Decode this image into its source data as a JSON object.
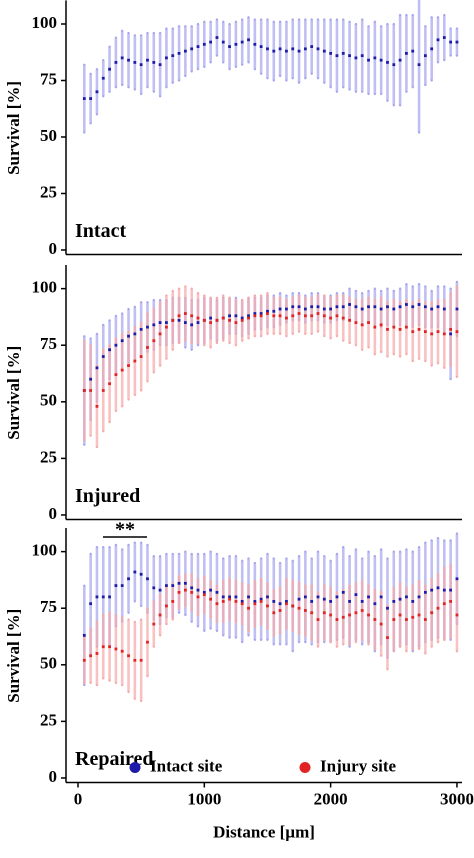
{
  "chart_data": [
    {
      "type": "errorbar",
      "panel_label": "Intact",
      "ylabel": "Survival [%]",
      "xlim": [
        -95,
        3040
      ],
      "ylim": [
        -2,
        110
      ],
      "yticks": [
        0,
        25,
        50,
        75,
        100
      ],
      "x": [
        50,
        100,
        150,
        200,
        250,
        300,
        350,
        400,
        450,
        500,
        550,
        600,
        650,
        700,
        750,
        800,
        850,
        900,
        950,
        1000,
        1050,
        1100,
        1150,
        1200,
        1250,
        1300,
        1350,
        1400,
        1450,
        1500,
        1550,
        1600,
        1650,
        1700,
        1750,
        1800,
        1850,
        1900,
        1950,
        2000,
        2050,
        2100,
        2150,
        2200,
        2250,
        2300,
        2350,
        2400,
        2450,
        2500,
        2550,
        2600,
        2650,
        2700,
        2750,
        2800,
        2850,
        2900,
        2950,
        3000
      ],
      "series": [
        {
          "color": "#1c1ca8",
          "bar_color": "#a4a4ee",
          "values": [
            67,
            67,
            70,
            76,
            80,
            83,
            85,
            84,
            83,
            82,
            84,
            83,
            82,
            85,
            86,
            87,
            88,
            89,
            90,
            91,
            92,
            94,
            92,
            90,
            91,
            92,
            93,
            91,
            90,
            89,
            88,
            89,
            88,
            89,
            88,
            89,
            90,
            89,
            88,
            87,
            86,
            87,
            86,
            85,
            86,
            84,
            85,
            84,
            83,
            82,
            84,
            87,
            88,
            82,
            86,
            89,
            93,
            94,
            92,
            92
          ],
          "errors": [
            15,
            11,
            10,
            8,
            10,
            11,
            12,
            12,
            12,
            13,
            12,
            13,
            14,
            13,
            12,
            12,
            11,
            10,
            10,
            10,
            9,
            8,
            9,
            10,
            10,
            10,
            10,
            11,
            12,
            13,
            13,
            12,
            13,
            13,
            14,
            13,
            12,
            13,
            14,
            15,
            16,
            15,
            15,
            15,
            16,
            15,
            16,
            15,
            17,
            18,
            20,
            17,
            16,
            30,
            13,
            14,
            10,
            10,
            6,
            6
          ]
        }
      ]
    },
    {
      "type": "errorbar",
      "panel_label": "Injured",
      "ylabel": "Survival [%]",
      "xlim": [
        -95,
        3040
      ],
      "ylim": [
        -2,
        110
      ],
      "yticks": [
        0,
        25,
        50,
        75,
        100
      ],
      "x": [
        50,
        100,
        150,
        200,
        250,
        300,
        350,
        400,
        450,
        500,
        550,
        600,
        650,
        700,
        750,
        800,
        850,
        900,
        950,
        1000,
        1050,
        1100,
        1150,
        1200,
        1250,
        1300,
        1350,
        1400,
        1450,
        1500,
        1550,
        1600,
        1650,
        1700,
        1750,
        1800,
        1850,
        1900,
        1950,
        2000,
        2050,
        2100,
        2150,
        2200,
        2250,
        2300,
        2350,
        2400,
        2450,
        2500,
        2550,
        2600,
        2650,
        2700,
        2750,
        2800,
        2850,
        2900,
        2950,
        3000
      ],
      "series": [
        {
          "color": "#1c1ca8",
          "bar_color": "#a4a4ee",
          "values": [
            55,
            60,
            65,
            70,
            73,
            75,
            77,
            79,
            80,
            82,
            83,
            84,
            85,
            85,
            86,
            86,
            85,
            84,
            85,
            86,
            87,
            86,
            87,
            88,
            88,
            87,
            88,
            89,
            89,
            90,
            90,
            91,
            91,
            92,
            92,
            91,
            92,
            92,
            91,
            91,
            92,
            92,
            93,
            92,
            91,
            92,
            92,
            91,
            92,
            91,
            92,
            93,
            92,
            93,
            92,
            91,
            92,
            91,
            80,
            91
          ],
          "errors": [
            24,
            18,
            15,
            14,
            13,
            13,
            12,
            12,
            12,
            12,
            11,
            11,
            10,
            10,
            10,
            10,
            11,
            11,
            10,
            10,
            9,
            9,
            9,
            8,
            8,
            8,
            8,
            7,
            7,
            7,
            7,
            7,
            6,
            6,
            6,
            6,
            6,
            6,
            6,
            6,
            6,
            6,
            7,
            7,
            7,
            7,
            8,
            8,
            8,
            8,
            8,
            9,
            9,
            9,
            9,
            8,
            9,
            10,
            20,
            12
          ]
        },
        {
          "color": "#e02424",
          "bar_color": "#f6a8a8",
          "values": [
            55,
            55,
            48,
            55,
            58,
            62,
            64,
            66,
            68,
            70,
            74,
            77,
            80,
            83,
            86,
            88,
            89,
            88,
            87,
            86,
            85,
            86,
            87,
            86,
            85,
            86,
            87,
            88,
            88,
            89,
            88,
            88,
            87,
            88,
            89,
            88,
            88,
            89,
            88,
            87,
            88,
            87,
            86,
            85,
            84,
            85,
            83,
            84,
            82,
            83,
            82,
            83,
            81,
            82,
            81,
            80,
            81,
            80,
            82,
            81
          ],
          "errors": [
            22,
            20,
            18,
            18,
            17,
            16,
            16,
            15,
            15,
            15,
            15,
            14,
            14,
            14,
            13,
            12,
            12,
            12,
            11,
            11,
            11,
            10,
            10,
            10,
            10,
            9,
            9,
            9,
            9,
            9,
            8,
            8,
            8,
            8,
            8,
            8,
            8,
            8,
            9,
            9,
            9,
            10,
            10,
            10,
            11,
            11,
            12,
            12,
            12,
            12,
            12,
            12,
            13,
            13,
            13,
            14,
            14,
            15,
            16,
            20
          ]
        }
      ]
    },
    {
      "type": "errorbar",
      "panel_label": "Repaired",
      "ylabel": "Survival [%]",
      "xlabel": "Distance [µm]",
      "annotation": "**",
      "legend": "bottom",
      "xlim": [
        -95,
        3040
      ],
      "ylim": [
        -2,
        110
      ],
      "yticks": [
        0,
        25,
        50,
        75,
        100
      ],
      "xticks": [
        0,
        1000,
        2000,
        3000
      ],
      "x": [
        50,
        100,
        150,
        200,
        250,
        300,
        350,
        400,
        450,
        500,
        550,
        600,
        650,
        700,
        750,
        800,
        850,
        900,
        950,
        1000,
        1050,
        1100,
        1150,
        1200,
        1250,
        1300,
        1350,
        1400,
        1450,
        1500,
        1550,
        1600,
        1650,
        1700,
        1750,
        1800,
        1850,
        1900,
        1950,
        2000,
        2050,
        2100,
        2150,
        2200,
        2250,
        2300,
        2350,
        2400,
        2450,
        2500,
        2550,
        2600,
        2650,
        2700,
        2750,
        2800,
        2850,
        2900,
        2950,
        3000
      ],
      "series": [
        {
          "name": "Intact site",
          "color": "#1c1ca8",
          "bar_color": "#a4a4ee",
          "values": [
            63,
            77,
            80,
            80,
            80,
            85,
            85,
            88,
            91,
            90,
            88,
            84,
            83,
            85,
            85,
            86,
            86,
            84,
            83,
            82,
            83,
            82,
            80,
            80,
            80,
            78,
            80,
            78,
            79,
            80,
            78,
            77,
            78,
            76,
            79,
            80,
            78,
            80,
            79,
            78,
            80,
            82,
            78,
            81,
            78,
            80,
            77,
            80,
            75,
            78,
            79,
            80,
            78,
            80,
            82,
            83,
            84,
            83,
            83,
            88
          ],
          "errors": [
            22,
            22,
            22,
            22,
            22,
            18,
            16,
            15,
            13,
            14,
            15,
            14,
            15,
            14,
            14,
            13,
            14,
            15,
            16,
            17,
            17,
            17,
            17,
            18,
            18,
            18,
            17,
            17,
            18,
            19,
            19,
            18,
            19,
            20,
            19,
            20,
            19,
            20,
            19,
            18,
            19,
            20,
            20,
            20,
            19,
            20,
            21,
            21,
            22,
            22,
            21,
            21,
            22,
            22,
            22,
            22,
            22,
            22,
            22,
            20
          ]
        },
        {
          "name": "Injury site",
          "color": "#e02424",
          "bar_color": "#f6a8a8",
          "values": [
            52,
            54,
            55,
            58,
            58,
            57,
            56,
            54,
            52,
            52,
            60,
            68,
            72,
            76,
            78,
            82,
            83,
            82,
            80,
            81,
            79,
            77,
            78,
            79,
            78,
            77,
            75,
            77,
            78,
            76,
            73,
            74,
            77,
            76,
            75,
            74,
            73,
            70,
            73,
            72,
            70,
            71,
            72,
            73,
            74,
            72,
            70,
            68,
            62,
            70,
            72,
            70,
            71,
            72,
            70,
            73,
            75,
            77,
            78,
            72
          ],
          "errors": [
            10,
            12,
            14,
            14,
            15,
            15,
            15,
            16,
            17,
            18,
            15,
            10,
            9,
            8,
            8,
            7,
            7,
            8,
            8,
            8,
            8,
            8,
            9,
            9,
            9,
            9,
            10,
            10,
            10,
            10,
            10,
            10,
            11,
            11,
            11,
            11,
            12,
            12,
            12,
            12,
            12,
            12,
            13,
            13,
            13,
            13,
            13,
            14,
            14,
            14,
            14,
            14,
            14,
            15,
            15,
            15,
            15,
            16,
            16,
            16
          ]
        }
      ]
    }
  ]
}
